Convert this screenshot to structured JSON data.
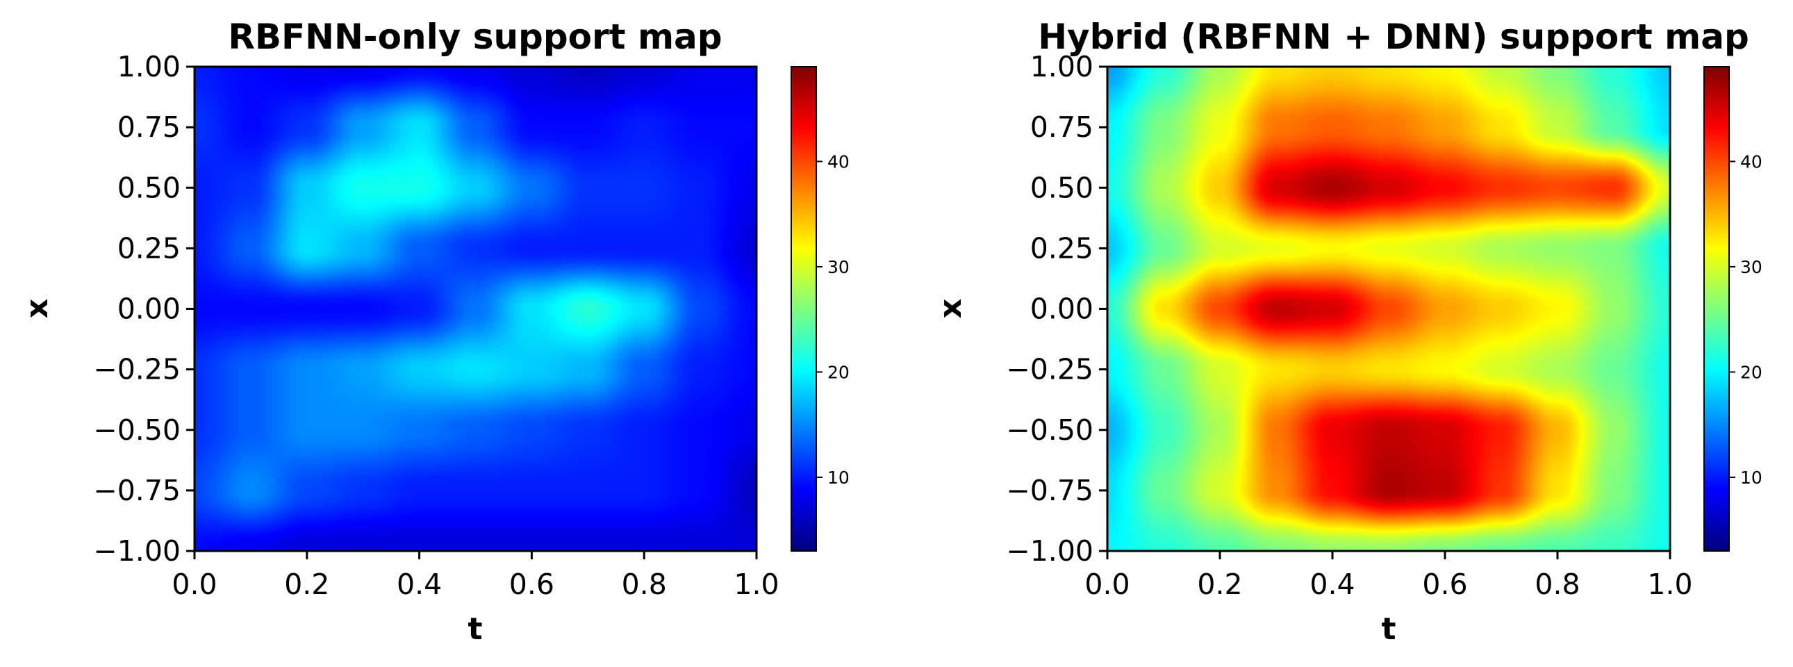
{
  "colors": {
    "colormap": "jet",
    "colormap_stops": [
      "#000080",
      "#0000ff",
      "#00ffff",
      "#ffff00",
      "#ff0000",
      "#800000"
    ],
    "frame": "#000000",
    "background": "#ffffff"
  },
  "chart_data": [
    {
      "type": "heatmap",
      "title": "RBFNN-only support map",
      "xlabel": "t",
      "ylabel": "x",
      "xlim": [
        0.0,
        1.0
      ],
      "ylim": [
        -1.0,
        1.0
      ],
      "x_ticks": [
        "0.0",
        "0.2",
        "0.4",
        "0.6",
        "0.8",
        "1.0"
      ],
      "y_ticks": [
        "1.00",
        "0.75",
        "0.50",
        "0.25",
        "0.00",
        "−0.25",
        "−0.50",
        "−0.75",
        "−1.00"
      ],
      "colorbar": {
        "range": [
          3,
          49
        ],
        "ticks": [
          "10",
          "20",
          "30",
          "40"
        ]
      },
      "t_samples": [
        0.0,
        0.1,
        0.2,
        0.3,
        0.4,
        0.5,
        0.6,
        0.7,
        0.8,
        0.9,
        1.0
      ],
      "x_samples": [
        1.0,
        0.75,
        0.5,
        0.25,
        0.0,
        -0.25,
        -0.5,
        -0.75,
        -1.0
      ],
      "values": [
        [
          10,
          9,
          8,
          8,
          9,
          8,
          7,
          6,
          7,
          8,
          8
        ],
        [
          11,
          9,
          11,
          16,
          19,
          13,
          9,
          9,
          10,
          9,
          9
        ],
        [
          10,
          11,
          18,
          21,
          21,
          18,
          14,
          11,
          11,
          10,
          8
        ],
        [
          10,
          13,
          19,
          17,
          13,
          11,
          10,
          10,
          10,
          10,
          7
        ],
        [
          9,
          9,
          9,
          9,
          10,
          14,
          19,
          22,
          19,
          12,
          9
        ],
        [
          11,
          13,
          15,
          16,
          18,
          19,
          18,
          17,
          13,
          10,
          9
        ],
        [
          11,
          13,
          15,
          15,
          14,
          13,
          12,
          11,
          10,
          9,
          8
        ],
        [
          12,
          15,
          12,
          11,
          10,
          10,
          10,
          10,
          10,
          9,
          6
        ],
        [
          9,
          8,
          7,
          7,
          7,
          7,
          7,
          7,
          7,
          7,
          7
        ]
      ]
    },
    {
      "type": "heatmap",
      "title": "Hybrid (RBFNN + DNN) support map",
      "xlabel": "t",
      "ylabel": "x",
      "xlim": [
        0.0,
        1.0
      ],
      "ylim": [
        -1.0,
        1.0
      ],
      "x_ticks": [
        "0.0",
        "0.2",
        "0.4",
        "0.6",
        "0.8",
        "1.0"
      ],
      "y_ticks": [
        "1.00",
        "0.75",
        "0.50",
        "0.25",
        "0.00",
        "−0.25",
        "−0.50",
        "−0.75",
        "−1.00"
      ],
      "colorbar": {
        "range": [
          3,
          49
        ],
        "ticks": [
          "10",
          "20",
          "30",
          "40"
        ]
      },
      "t_samples": [
        0.0,
        0.1,
        0.2,
        0.3,
        0.4,
        0.5,
        0.6,
        0.7,
        0.8,
        0.9,
        1.0
      ],
      "x_samples": [
        1.0,
        0.75,
        0.5,
        0.25,
        0.0,
        -0.25,
        -0.5,
        -0.75,
        -1.0
      ],
      "values": [
        [
          16,
          22,
          28,
          33,
          34,
          33,
          32,
          29,
          26,
          22,
          18
        ],
        [
          20,
          26,
          31,
          38,
          39,
          38,
          36,
          33,
          29,
          24,
          19
        ],
        [
          21,
          28,
          34,
          45,
          47,
          45,
          43,
          41,
          40,
          41,
          30
        ],
        [
          18,
          25,
          30,
          31,
          32,
          31,
          30,
          28,
          27,
          26,
          21
        ],
        [
          22,
          33,
          40,
          46,
          45,
          40,
          36,
          34,
          32,
          27,
          22
        ],
        [
          20,
          25,
          30,
          33,
          34,
          33,
          32,
          30,
          28,
          25,
          21
        ],
        [
          17,
          23,
          28,
          38,
          44,
          46,
          45,
          42,
          35,
          27,
          21
        ],
        [
          19,
          25,
          30,
          37,
          43,
          47,
          46,
          41,
          33,
          26,
          21
        ],
        [
          20,
          22,
          24,
          26,
          27,
          27,
          26,
          25,
          24,
          23,
          21
        ]
      ]
    }
  ]
}
